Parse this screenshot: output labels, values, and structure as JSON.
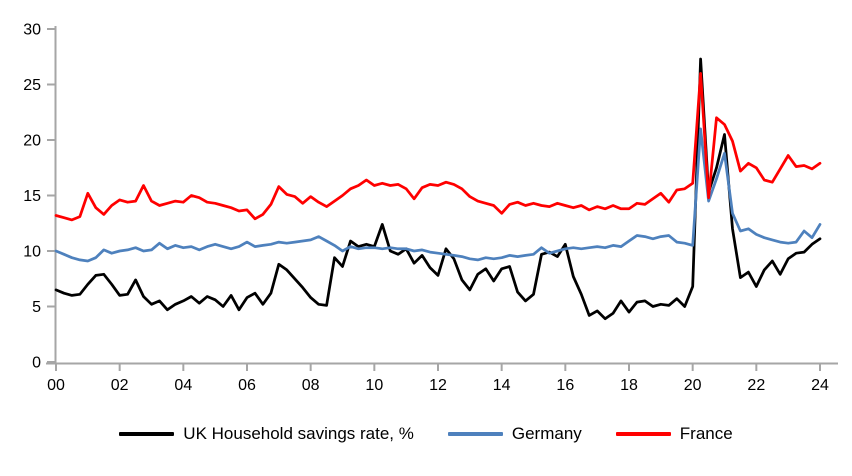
{
  "chart_data": {
    "type": "line",
    "title": "",
    "xlabel": "",
    "ylabel": "",
    "grid": false,
    "legend_position": "bottom",
    "axis_color": "#A6A6A6",
    "text_color": "#000000",
    "background": "#FFFFFF",
    "ylim": [
      0,
      30
    ],
    "y_ticks": [
      0,
      5,
      10,
      15,
      20,
      25,
      30
    ],
    "x_tick_labels": [
      "00",
      "02",
      "04",
      "06",
      "08",
      "10",
      "12",
      "14",
      "16",
      "18",
      "20",
      "22",
      "24"
    ],
    "x_tick_years": [
      0,
      2,
      4,
      6,
      8,
      10,
      12,
      14,
      16,
      18,
      20,
      22,
      24
    ],
    "x_start_year": 2000,
    "x_end": 2024.25,
    "frequency": "quarterly",
    "series": [
      {
        "name": "UK Household savings rate, %",
        "color": "#000000",
        "values": [
          6.5,
          6.2,
          6.0,
          6.1,
          7.0,
          7.8,
          7.9,
          7.0,
          6.0,
          6.1,
          7.4,
          5.9,
          5.2,
          5.5,
          4.7,
          5.2,
          5.5,
          5.9,
          5.3,
          5.9,
          5.6,
          5.0,
          6.0,
          4.7,
          5.8,
          6.2,
          5.2,
          6.2,
          8.8,
          8.3,
          7.5,
          6.7,
          5.8,
          5.2,
          5.1,
          9.4,
          8.6,
          10.9,
          10.4,
          10.6,
          10.4,
          12.4,
          10.0,
          9.7,
          10.2,
          8.9,
          9.6,
          8.5,
          7.8,
          10.2,
          9.3,
          7.4,
          6.5,
          7.9,
          8.4,
          7.3,
          8.4,
          8.6,
          6.3,
          5.5,
          6.1,
          9.7,
          9.9,
          9.5,
          10.6,
          7.7,
          6.1,
          4.2,
          4.6,
          3.9,
          4.4,
          5.5,
          4.5,
          5.4,
          5.5,
          5.0,
          5.2,
          5.1,
          5.7,
          5.0,
          6.8,
          27.3,
          15.3,
          17.5,
          20.5,
          12.0,
          7.6,
          8.1,
          6.8,
          8.3,
          9.1,
          7.9,
          9.3,
          9.8,
          9.9,
          10.6,
          11.1
        ]
      },
      {
        "name": "Germany",
        "color": "#4E81BD",
        "values": [
          10.0,
          9.7,
          9.4,
          9.2,
          9.1,
          9.4,
          10.1,
          9.8,
          10.0,
          10.1,
          10.3,
          10.0,
          10.1,
          10.7,
          10.2,
          10.5,
          10.3,
          10.4,
          10.1,
          10.4,
          10.6,
          10.4,
          10.2,
          10.4,
          10.8,
          10.4,
          10.5,
          10.6,
          10.8,
          10.7,
          10.8,
          10.9,
          11.0,
          11.3,
          10.9,
          10.5,
          10.0,
          10.4,
          10.2,
          10.3,
          10.3,
          10.2,
          10.3,
          10.2,
          10.2,
          10.0,
          10.1,
          9.9,
          9.8,
          9.7,
          9.6,
          9.5,
          9.3,
          9.2,
          9.4,
          9.3,
          9.4,
          9.6,
          9.5,
          9.6,
          9.7,
          10.3,
          9.8,
          10.0,
          10.2,
          10.3,
          10.2,
          10.3,
          10.4,
          10.3,
          10.5,
          10.4,
          10.9,
          11.4,
          11.3,
          11.1,
          11.3,
          11.4,
          10.8,
          10.7,
          10.5,
          21.0,
          14.5,
          16.5,
          18.8,
          13.4,
          11.8,
          12.0,
          11.5,
          11.2,
          11.0,
          10.8,
          10.7,
          10.8,
          11.8,
          11.2,
          12.4
        ]
      },
      {
        "name": "France",
        "color": "#FF0000",
        "values": [
          13.2,
          13.0,
          12.8,
          13.1,
          15.2,
          13.9,
          13.3,
          14.1,
          14.6,
          14.4,
          14.5,
          15.9,
          14.5,
          14.1,
          14.3,
          14.5,
          14.4,
          15.0,
          14.8,
          14.4,
          14.3,
          14.1,
          13.9,
          13.6,
          13.7,
          12.9,
          13.3,
          14.2,
          15.8,
          15.1,
          14.9,
          14.3,
          14.9,
          14.4,
          14.0,
          14.5,
          15.0,
          15.6,
          15.9,
          16.4,
          15.9,
          16.1,
          15.9,
          16.0,
          15.6,
          14.7,
          15.7,
          16.0,
          15.9,
          16.2,
          16.0,
          15.6,
          14.9,
          14.5,
          14.3,
          14.1,
          13.4,
          14.2,
          14.4,
          14.1,
          14.3,
          14.1,
          14.0,
          14.3,
          14.1,
          13.9,
          14.1,
          13.7,
          14.0,
          13.8,
          14.1,
          13.8,
          13.8,
          14.3,
          14.2,
          14.7,
          15.2,
          14.4,
          15.5,
          15.6,
          16.1,
          26.0,
          14.8,
          22.0,
          21.4,
          19.9,
          17.2,
          17.9,
          17.5,
          16.4,
          16.2,
          17.4,
          18.6,
          17.6,
          17.7,
          17.4,
          17.9
        ]
      }
    ]
  },
  "legend": {
    "uk_label": "UK Household savings rate, %",
    "germany_label": "Germany",
    "france_label": "France"
  }
}
